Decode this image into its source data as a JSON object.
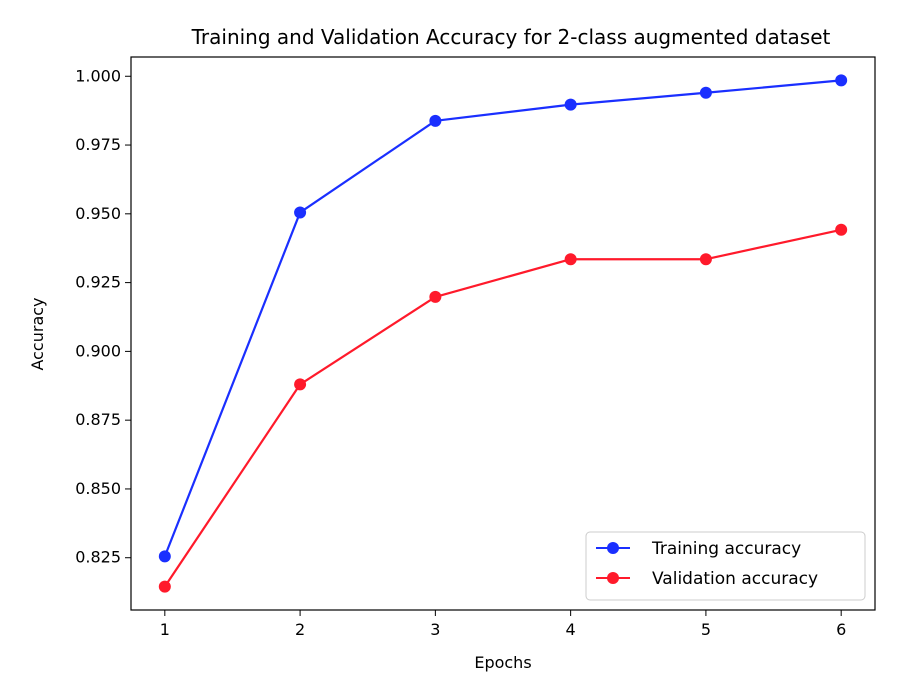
{
  "chart_data": {
    "type": "line",
    "title": "Training and Validation Accuracy for 2-class augmented dataset",
    "xlabel": "Epochs",
    "ylabel": "Accuracy",
    "x": [
      1,
      2,
      3,
      4,
      5,
      6
    ],
    "xticks": [
      "1",
      "2",
      "3",
      "4",
      "5",
      "6"
    ],
    "yticks": [
      "0.825",
      "0.850",
      "0.875",
      "0.900",
      "0.925",
      "0.950",
      "0.975",
      "1.000"
    ],
    "xlim": [
      0.75,
      6.25
    ],
    "ylim": [
      0.806,
      1.007
    ],
    "grid": false,
    "legend_position": "lower-right",
    "series": [
      {
        "name": "Training accuracy",
        "color": "#1a2fff",
        "values": [
          0.8255,
          0.9505,
          0.9838,
          0.9897,
          0.994,
          0.9985
        ]
      },
      {
        "name": "Validation accuracy",
        "color": "#ff1a2b",
        "values": [
          0.8145,
          0.888,
          0.9198,
          0.9335,
          0.9335,
          0.9442
        ]
      }
    ]
  }
}
